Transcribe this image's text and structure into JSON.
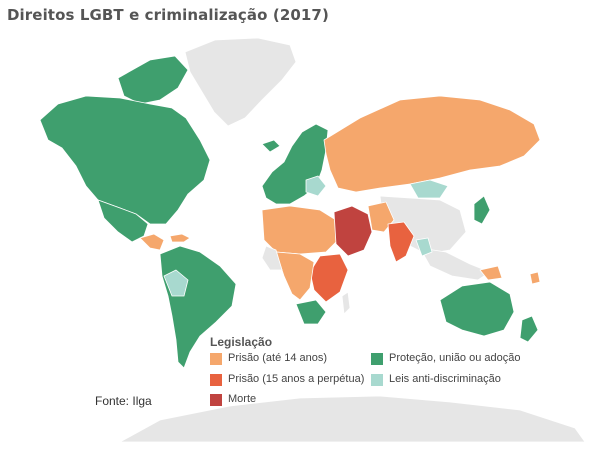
{
  "title": "Direitos LGBT e criminalização (2017)",
  "source": "Fonte: Ilga",
  "legend": {
    "title": "Legislação",
    "items": [
      {
        "label": "Prisão (até 14 anos)",
        "color": "#f5a76c"
      },
      {
        "label": "Prisão (15 anos a perpétua)",
        "color": "#e8623f"
      },
      {
        "label": "Morte",
        "color": "#c0433f"
      },
      {
        "label": "Proteção, união ou adoção",
        "color": "#3f9f6e"
      },
      {
        "label": "Leis anti-discriminação",
        "color": "#a8d9cf"
      }
    ]
  },
  "colors": {
    "no_data": "#e6e6e6",
    "border": "#ffffff"
  }
}
